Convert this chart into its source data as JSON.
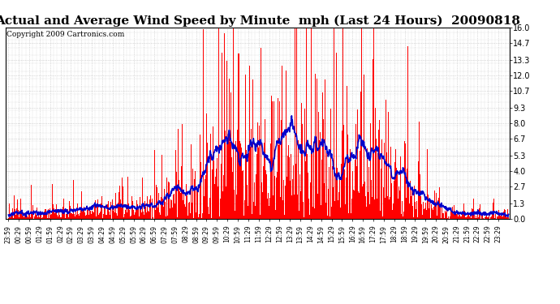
{
  "title": "Actual and Average Wind Speed by Minute  mph (Last 24 Hours)  20090818",
  "copyright": "Copyright 2009 Cartronics.com",
  "yticks": [
    0.0,
    1.3,
    2.7,
    4.0,
    5.3,
    6.7,
    8.0,
    9.3,
    10.7,
    12.0,
    13.3,
    14.7,
    16.0
  ],
  "ylim": [
    0.0,
    16.0
  ],
  "bar_color": "#FF0000",
  "line_color": "#0000CC",
  "bg_color": "#FFFFFF",
  "grid_color": "#BBBBBB",
  "title_fontsize": 11,
  "copyright_fontsize": 6.5
}
